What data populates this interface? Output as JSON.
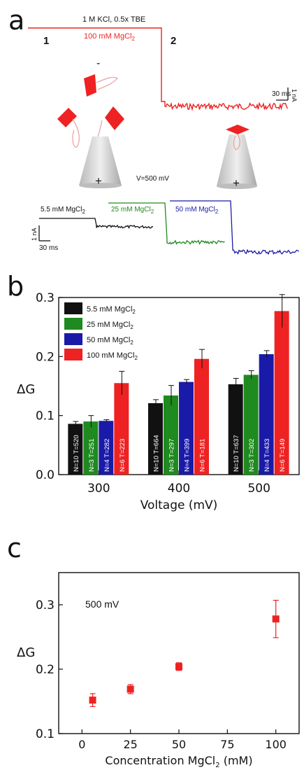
{
  "panels": {
    "a": {
      "letter": "a",
      "marker_1": "1",
      "marker_2": "2",
      "buffer_label": "1 M KCl, 0.5x TBE",
      "mg_label": "100 mM MgCl",
      "mg_sub": "2",
      "scale_time": "30 ms",
      "scale_current": "1 nA",
      "minus_sign": "-",
      "plus_sign": "+",
      "plus_sign_2": "+",
      "voltage_label": "V=500 mV",
      "traces": [
        {
          "label": "5.5 mM MgCl",
          "sub": "2",
          "color": "#111111"
        },
        {
          "label": "25 mM MgCl",
          "sub": "2",
          "color": "#1f8a1f"
        },
        {
          "label": "50 mM MgCl",
          "sub": "2",
          "color": "#1a1aa8"
        }
      ],
      "colors": {
        "red": "#ee2222",
        "green": "#1f8a1f",
        "blue": "#1a1aa8",
        "black": "#111111"
      }
    },
    "b": {
      "letter": "b"
    },
    "c": {
      "letter": "c",
      "annotation": "500 mV"
    }
  },
  "chart_data": [
    {
      "type": "bar",
      "ylabel": "ΔG",
      "xlabel": "Voltage (mV)",
      "categories": [
        "300",
        "400",
        "500"
      ],
      "ylim": [
        0.0,
        0.3
      ],
      "yticks": [
        "0.0",
        "0.1",
        "0.2",
        "0.3"
      ],
      "legend": "top-left",
      "series": [
        {
          "name": "5.5 mM MgCl",
          "sub": "2",
          "color": "#111111",
          "values": [
            0.086,
            0.121,
            0.153
          ],
          "errors": [
            0.004,
            0.006,
            0.01
          ],
          "bar_labels": [
            "N=10 T=520",
            "N=10 T=664",
            "N=10 T=637"
          ]
        },
        {
          "name": "25 mM MgCl",
          "sub": "2",
          "color": "#1f8a1f",
          "values": [
            0.09,
            0.134,
            0.169
          ],
          "errors": [
            0.01,
            0.017,
            0.007
          ],
          "bar_labels": [
            "N=3 T=251",
            "N=3 T=297",
            "N=3 T=302"
          ]
        },
        {
          "name": "50 mM MgCl",
          "sub": "2",
          "color": "#1a1aa8",
          "values": [
            0.091,
            0.157,
            0.204
          ],
          "errors": [
            0.002,
            0.004,
            0.006
          ],
          "bar_labels": [
            "N=4 T=282",
            "N=4 T=399",
            "N=4 T=433"
          ]
        },
        {
          "name": "100 mM MgCl",
          "sub": "2",
          "color": "#ee2222",
          "values": [
            0.155,
            0.196,
            0.277
          ],
          "errors": [
            0.02,
            0.016,
            0.028
          ],
          "bar_labels": [
            "N=6 T=223",
            "N=6 T=181",
            "N=6 T=149"
          ]
        }
      ]
    },
    {
      "type": "scatter",
      "ylabel": "ΔG",
      "xlabel": "Concentration MgCl",
      "xlabel_sub": "2",
      "xlabel_unit": " (mM)",
      "xlim": [
        -12,
        112
      ],
      "ylim": [
        0.1,
        0.35
      ],
      "xticks": [
        "0",
        "25",
        "50",
        "75",
        "100"
      ],
      "yticks": [
        "0.1",
        "0.2",
        "0.3"
      ],
      "color": "#ee2222",
      "x": [
        5.5,
        25,
        50,
        100
      ],
      "y": [
        0.152,
        0.169,
        0.204,
        0.278
      ],
      "errors": [
        0.01,
        0.007,
        0.006,
        0.029
      ]
    }
  ]
}
